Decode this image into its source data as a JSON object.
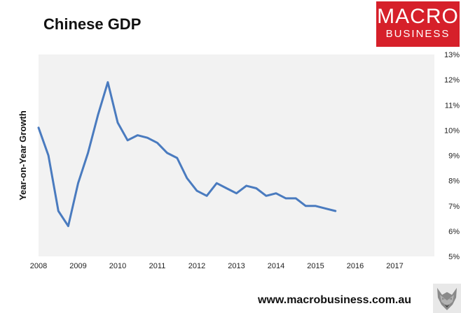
{
  "title": "Chinese GDP",
  "logo": {
    "line1": "MACRO",
    "line2": "BUSINESS"
  },
  "footer": {
    "url": "www.macrobusiness.com.au"
  },
  "colors": {
    "line": "#4a7bbf",
    "plot_bg": "#f2f2f2",
    "brand": "#d6202a"
  },
  "icons": {
    "brand_mascot": "wolf-icon"
  },
  "chart_data": {
    "type": "line",
    "title": "Chinese GDP",
    "xlabel": "",
    "ylabel": "Year-on-Year Growth",
    "xlim": [
      2008,
      2018
    ],
    "ylim": [
      5,
      13
    ],
    "y_axis_side": "right",
    "grid": false,
    "xticks": [
      "2008",
      "2009",
      "2010",
      "2011",
      "2012",
      "2013",
      "2014",
      "2015",
      "2016",
      "2017"
    ],
    "yticks": [
      "5%",
      "6%",
      "7%",
      "8%",
      "9%",
      "10%",
      "11%",
      "12%",
      "13%"
    ],
    "series": [
      {
        "x": [
          2008.0,
          2008.25,
          2008.5,
          2008.75,
          2009.0,
          2009.25,
          2009.5,
          2009.75,
          2010.0,
          2010.25,
          2010.5,
          2010.75,
          2011.0,
          2011.25,
          2011.5,
          2011.75,
          2012.0,
          2012.25,
          2012.5,
          2012.75,
          2013.0,
          2013.25,
          2013.5,
          2013.75,
          2014.0,
          2014.25,
          2014.5,
          2014.75,
          2015.0,
          2015.25,
          2015.5
        ],
        "values": [
          10.1,
          9.0,
          6.8,
          6.2,
          7.9,
          9.1,
          10.6,
          11.9,
          10.3,
          9.6,
          9.8,
          9.7,
          9.5,
          9.1,
          8.9,
          8.1,
          7.6,
          7.4,
          7.9,
          7.7,
          7.5,
          7.8,
          7.7,
          7.4,
          7.5,
          7.3,
          7.3,
          7.0,
          7.0,
          6.9,
          6.8
        ]
      }
    ]
  }
}
